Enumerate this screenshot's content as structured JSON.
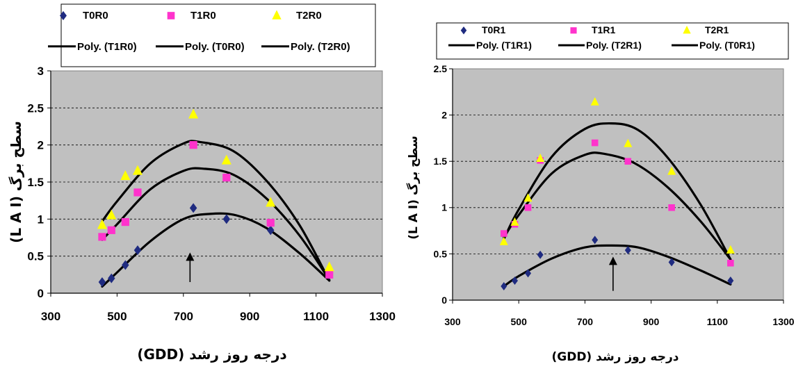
{
  "chart_data": [
    {
      "type": "scatter",
      "xlabel": "(GDD) درجه روز رشد",
      "ylabel": "(L A I) سطح برگ",
      "xlim": [
        300,
        1300
      ],
      "ylim": [
        0,
        3
      ],
      "xticks": [
        300,
        500,
        700,
        900,
        1100,
        1300
      ],
      "xtick_labels": [
        "300",
        "500",
        "700",
        "900",
        "1100",
        "1300"
      ],
      "yticks": [
        0,
        0.5,
        1,
        1.5,
        2,
        2.5,
        3
      ],
      "ytick_labels": [
        "0",
        "0.5",
        "1",
        "1.5",
        "2",
        "2.5",
        "3"
      ],
      "grid": "horizontal dashed",
      "plot_background": "#c0c0c0",
      "legend": {
        "placement": "top",
        "items": [
          "T0R0",
          "T1R0",
          "T2R0",
          "Poly. (T1R0)",
          "Poly. (T0R0)",
          "Poly. (T2R0)"
        ]
      },
      "series": [
        {
          "name": "T0R0",
          "marker": "diamond",
          "color": "#1f2b80",
          "x": [
            455,
            483,
            525,
            562,
            730,
            830,
            963,
            1140
          ],
          "y": [
            0.15,
            0.2,
            0.38,
            0.58,
            1.15,
            1.0,
            0.85,
            0.25
          ]
        },
        {
          "name": "T1R0",
          "marker": "square",
          "color": "#ff33cc",
          "x": [
            455,
            483,
            525,
            562,
            730,
            830,
            963,
            1140
          ],
          "y": [
            0.76,
            0.85,
            0.96,
            1.36,
            2.0,
            1.56,
            0.95,
            0.25
          ]
        },
        {
          "name": "T2R0",
          "marker": "triangle",
          "color": "#ffff00",
          "x": [
            455,
            483,
            525,
            562,
            730,
            830,
            963,
            1140
          ],
          "y": [
            0.92,
            1.05,
            1.58,
            1.65,
            2.41,
            1.79,
            1.22,
            0.35
          ]
        }
      ],
      "trendlines": [
        {
          "name": "Poly. (T0R0)",
          "points": [
            [
              455,
              0.09
            ],
            [
              500,
              0.28
            ],
            [
              600,
              0.7
            ],
            [
              700,
              1.0
            ],
            [
              780,
              1.07
            ],
            [
              860,
              1.05
            ],
            [
              950,
              0.88
            ],
            [
              1050,
              0.54
            ],
            [
              1140,
              0.17
            ]
          ]
        },
        {
          "name": "Poly. (T1R0)",
          "points": [
            [
              455,
              0.72
            ],
            [
              500,
              0.93
            ],
            [
              600,
              1.4
            ],
            [
              700,
              1.65
            ],
            [
              760,
              1.68
            ],
            [
              850,
              1.6
            ],
            [
              950,
              1.28
            ],
            [
              1050,
              0.78
            ],
            [
              1140,
              0.18
            ]
          ]
        },
        {
          "name": "Poly. (T2R0)",
          "points": [
            [
              455,
              0.97
            ],
            [
              500,
              1.24
            ],
            [
              600,
              1.75
            ],
            [
              700,
              2.02
            ],
            [
              750,
              2.04
            ],
            [
              850,
              1.92
            ],
            [
              950,
              1.52
            ],
            [
              1050,
              0.92
            ],
            [
              1140,
              0.17
            ]
          ]
        }
      ],
      "annotation": {
        "type": "arrow",
        "x": 720,
        "y_from": 0.15,
        "y_to": 0.55
      }
    },
    {
      "type": "scatter",
      "xlabel": "(GDD) درجه روز رشد",
      "ylabel": "(L A I) سطح برگ",
      "xlim": [
        300,
        1300
      ],
      "ylim": [
        0,
        2.5
      ],
      "xticks": [
        300,
        500,
        700,
        900,
        1100,
        1300
      ],
      "xtick_labels": [
        "300",
        "500",
        "700",
        "900",
        "1100",
        "1300"
      ],
      "yticks": [
        0,
        0.5,
        1,
        1.5,
        2,
        2.5
      ],
      "ytick_labels": [
        "0",
        "0.5",
        "1",
        "1.5",
        "2",
        "2.5"
      ],
      "grid": "horizontal dashed",
      "plot_background": "#c0c0c0",
      "legend": {
        "placement": "top",
        "items": [
          "T0R1",
          "T1R1",
          "T2R1",
          "Poly. (T1R1)",
          "Poly. (T2R1)",
          "Poly. (T0R1)"
        ]
      },
      "series": [
        {
          "name": "T0R1",
          "marker": "diamond",
          "color": "#1f2b80",
          "x": [
            455,
            488,
            528,
            565,
            730,
            830,
            962,
            1140
          ],
          "y": [
            0.15,
            0.21,
            0.29,
            0.49,
            0.65,
            0.54,
            0.41,
            0.21
          ]
        },
        {
          "name": "T1R1",
          "marker": "square",
          "color": "#ff33cc",
          "x": [
            455,
            488,
            528,
            565,
            730,
            830,
            962,
            1140
          ],
          "y": [
            0.72,
            0.82,
            1.0,
            1.51,
            1.7,
            1.5,
            1.0,
            0.4
          ]
        },
        {
          "name": "T2R1",
          "marker": "triangle",
          "color": "#ffff00",
          "x": [
            455,
            488,
            528,
            565,
            730,
            830,
            962,
            1140
          ],
          "y": [
            0.63,
            0.84,
            1.1,
            1.53,
            2.14,
            1.69,
            1.39,
            0.54
          ]
        }
      ],
      "trendlines": [
        {
          "name": "Poly. (T1R1)",
          "points": [
            [
              455,
              0.68
            ],
            [
              500,
              0.92
            ],
            [
              600,
              1.37
            ],
            [
              700,
              1.57
            ],
            [
              760,
              1.58
            ],
            [
              850,
              1.48
            ],
            [
              950,
              1.22
            ],
            [
              1050,
              0.85
            ],
            [
              1140,
              0.44
            ]
          ]
        },
        {
          "name": "Poly. (T2R1)",
          "points": [
            [
              455,
              0.66
            ],
            [
              500,
              0.98
            ],
            [
              600,
              1.55
            ],
            [
              700,
              1.85
            ],
            [
              780,
              1.91
            ],
            [
              860,
              1.84
            ],
            [
              950,
              1.54
            ],
            [
              1050,
              1.03
            ],
            [
              1140,
              0.44
            ]
          ]
        },
        {
          "name": "Poly. (T0R1)",
          "points": [
            [
              455,
              0.15
            ],
            [
              500,
              0.26
            ],
            [
              600,
              0.45
            ],
            [
              700,
              0.57
            ],
            [
              780,
              0.59
            ],
            [
              860,
              0.57
            ],
            [
              950,
              0.47
            ],
            [
              1050,
              0.32
            ],
            [
              1140,
              0.17
            ]
          ]
        }
      ],
      "annotation": {
        "type": "arrow",
        "x": 785,
        "y_from": 0.1,
        "y_to": 0.47
      }
    }
  ]
}
